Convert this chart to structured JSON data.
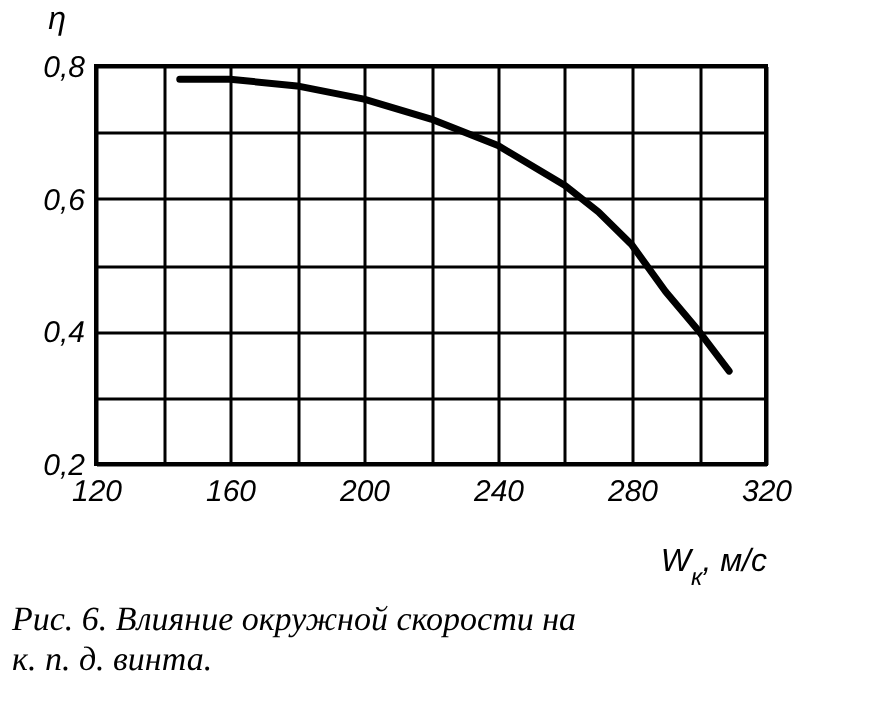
{
  "chart_data": {
    "type": "line",
    "xlabel": "W$_{к}$, м/с",
    "ylabel": "η",
    "annotations": [
      "Рис. 6. Влияние окружной скорости на к. п. д. винта."
    ],
    "x": [
      145,
      160,
      180,
      200,
      220,
      240,
      260,
      270,
      280,
      290,
      300,
      309
    ],
    "series": [
      {
        "color": "#000000",
        "values": [
          0.78,
          0.78,
          0.77,
          0.75,
          0.72,
          0.68,
          0.62,
          0.58,
          0.53,
          0.46,
          0.4,
          0.34
        ]
      }
    ],
    "xlim": [
      120,
      320
    ],
    "ylim": [
      0.2,
      0.8
    ],
    "xticks": [
      120,
      {
        "value": 140,
        "label": null
      },
      160,
      {
        "value": 180,
        "label": null
      },
      200,
      {
        "value": 220,
        "label": null
      },
      240,
      {
        "value": 260,
        "label": null
      },
      280,
      {
        "value": 300,
        "label": null
      },
      320
    ],
    "yticks": [
      {
        "value": 0.2,
        "label": "0,2"
      },
      {
        "value": 0.3,
        "label": null
      },
      {
        "value": 0.4,
        "label": "0,4"
      },
      {
        "value": 0.5,
        "label": null
      },
      {
        "value": 0.6,
        "label": "0,6"
      },
      {
        "value": 0.7,
        "label": null
      },
      {
        "value": 0.8,
        "label": "0,8"
      }
    ],
    "grid": true,
    "line_style": "solid"
  }
}
